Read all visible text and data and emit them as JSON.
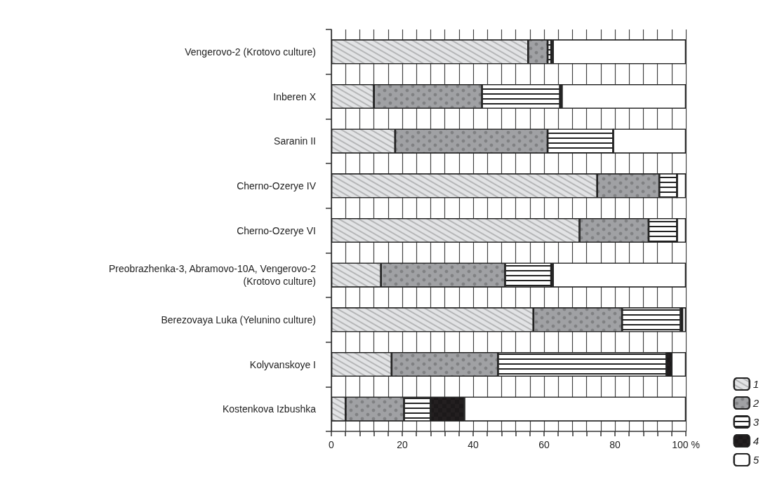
{
  "chart_data": {
    "type": "bar",
    "orientation": "horizontal",
    "stacked": true,
    "categories": [
      "Vengerovo-2 (Krotovo culture)",
      "Inberen X",
      "Saranin II",
      "Cherno-Ozerye IV",
      "Cherno-Ozerye VI",
      "Preobrazhenka-3, Abramovo-10A, Vengerovo-2\n(Krotovo culture)",
      "Berezovaya Luka (Yelunino culture)",
      "Kolyvanskoye I",
      "Kostenkova Izbushka"
    ],
    "series": [
      {
        "name": "1",
        "color": "#e2e3e5",
        "values": [
          55.5,
          12,
          18,
          75,
          70,
          14,
          57,
          17,
          4
        ]
      },
      {
        "name": "2",
        "color": "#a0a1a4",
        "values": [
          5.5,
          30.5,
          43,
          17.5,
          19.5,
          35,
          25,
          30,
          16.5
        ]
      },
      {
        "name": "3",
        "color": "#ffffff",
        "values": [
          1,
          22,
          18.5,
          5,
          8,
          13,
          16.5,
          47.5,
          7.5
        ]
      },
      {
        "name": "4",
        "color": "#231f20",
        "values": [
          0.5,
          0.5,
          0,
          0,
          0,
          0.5,
          0.5,
          1.5,
          9.5
        ]
      },
      {
        "name": "5",
        "color": "#ffffff",
        "values": [
          37.5,
          35,
          20.5,
          2.5,
          2.5,
          37.5,
          1,
          4,
          62.5
        ]
      }
    ],
    "xlim": [
      0,
      100
    ],
    "xticks": [
      0,
      {
        "value": 4,
        "label": null
      },
      {
        "value": 8,
        "label": null
      },
      {
        "value": 12,
        "label": null
      },
      {
        "value": 16,
        "label": null
      },
      20,
      {
        "value": 24,
        "label": null
      },
      {
        "value": 28,
        "label": null
      },
      {
        "value": 32,
        "label": null
      },
      {
        "value": 36,
        "label": null
      },
      40,
      {
        "value": 44,
        "label": null
      },
      {
        "value": 48,
        "label": null
      },
      {
        "value": 52,
        "label": null
      },
      {
        "value": 56,
        "label": null
      },
      60,
      {
        "value": 64,
        "label": null
      },
      {
        "value": 68,
        "label": null
      },
      {
        "value": 72,
        "label": null
      },
      {
        "value": 76,
        "label": null
      },
      80,
      {
        "value": 84,
        "label": null
      },
      {
        "value": 88,
        "label": null
      },
      {
        "value": 92,
        "label": null
      },
      {
        "value": 96,
        "label": null
      },
      {
        "value": 100,
        "label": "100 %"
      }
    ],
    "grid": "x",
    "legend": "bottom right"
  }
}
